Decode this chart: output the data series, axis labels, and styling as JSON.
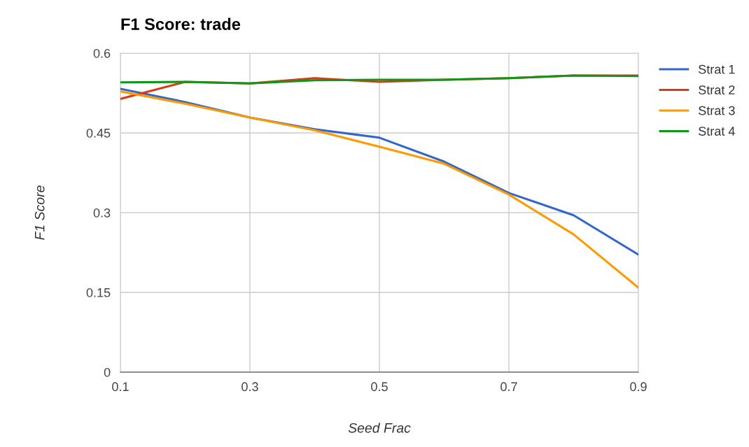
{
  "chart_data": {
    "type": "line",
    "title": "F1 Score: trade",
    "xlabel": "Seed Frac",
    "ylabel": "F1 Score",
    "x": [
      0.1,
      0.2,
      0.3,
      0.4,
      0.5,
      0.6,
      0.7,
      0.8,
      0.9
    ],
    "series": [
      {
        "name": "Strat 1",
        "color": "#3366cc",
        "values": [
          0.533,
          0.508,
          0.479,
          0.457,
          0.441,
          0.396,
          0.337,
          0.295,
          0.221
        ]
      },
      {
        "name": "Strat 2",
        "color": "#dc3912",
        "values": [
          0.514,
          0.546,
          0.543,
          0.553,
          0.546,
          0.55,
          0.553,
          0.558,
          0.558
        ]
      },
      {
        "name": "Strat 3",
        "color": "#ff9900",
        "values": [
          0.528,
          0.505,
          0.479,
          0.455,
          0.424,
          0.392,
          0.334,
          0.259,
          0.159
        ]
      },
      {
        "name": "Strat 4",
        "color": "#109618",
        "values": [
          0.545,
          0.546,
          0.543,
          0.549,
          0.55,
          0.55,
          0.553,
          0.558,
          0.557
        ]
      }
    ],
    "xlim": [
      0.1,
      0.9
    ],
    "xticks": [
      0.1,
      0.3,
      0.5,
      0.7,
      0.9
    ],
    "ylim": [
      0,
      0.6
    ],
    "yticks": [
      0,
      0.15,
      0.3,
      0.45,
      0.6
    ],
    "grid": true,
    "legend": "top right",
    "marker": "none",
    "line_style": "solid"
  }
}
